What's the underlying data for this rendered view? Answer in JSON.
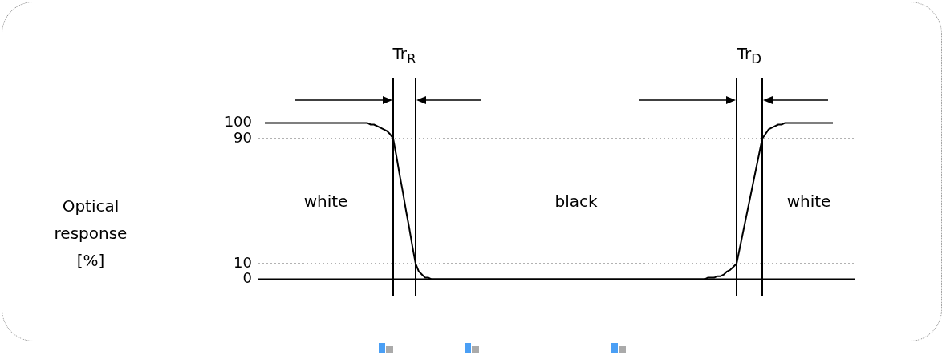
{
  "chart_data": {
    "type": "line",
    "categories": [
      null,
      null,
      null,
      null,
      null,
      null,
      null,
      null,
      null,
      null,
      null,
      null,
      null,
      null,
      null,
      null,
      null,
      null,
      null,
      null,
      null,
      null,
      null,
      null,
      null,
      null,
      null,
      null,
      null,
      null,
      null,
      null,
      null,
      null,
      null,
      null,
      null,
      null,
      null,
      null,
      null,
      null,
      null,
      null,
      null,
      null,
      null,
      null,
      null,
      null,
      null,
      null,
      null,
      null,
      null,
      null,
      null,
      null,
      null,
      null,
      null,
      null,
      null,
      null,
      null,
      null,
      null,
      null,
      null,
      null,
      null,
      null,
      null,
      null,
      null,
      null,
      null,
      null,
      null,
      null,
      null,
      null,
      null,
      null,
      null,
      null,
      null,
      null,
      null,
      null,
      null,
      null,
      null,
      null,
      null,
      null,
      null,
      null,
      null,
      null,
      null,
      null,
      null,
      null,
      null,
      null,
      null,
      null,
      null,
      null,
      null,
      null,
      null,
      null,
      null,
      null,
      null,
      null,
      null,
      null,
      null,
      null,
      null,
      null,
      null,
      null,
      null,
      null,
      null,
      null,
      null,
      null,
      null,
      null,
      null,
      null,
      null,
      null,
      null,
      null,
      null,
      null,
      null,
      null,
      null,
      null,
      null,
      null,
      null,
      null,
      null,
      null,
      null,
      null,
      null,
      null,
      null,
      null,
      null,
      null,
      null,
      null,
      null,
      null,
      null,
      null,
      null,
      null,
      null,
      null,
      null,
      null,
      null,
      null,
      null,
      null,
      null,
      null,
      null,
      null,
      null,
      null,
      null,
      null,
      null,
      null,
      null
    ],
    "series": [
      {
        "color": "#000000",
        "values": [
          null,
          null,
          100,
          100,
          100,
          100,
          100,
          100,
          100,
          100,
          100,
          100,
          100,
          100,
          100,
          100,
          100,
          100,
          100,
          100,
          100,
          100,
          100,
          100,
          100,
          100,
          100,
          100,
          100,
          100,
          100,
          100,
          100,
          100,
          100,
          99,
          99,
          98,
          97,
          96,
          95,
          93,
          90,
          79,
          67,
          56,
          44,
          33,
          21,
          10,
          5,
          3,
          1,
          1,
          0,
          0,
          0,
          0,
          0,
          0,
          0,
          0,
          0,
          0,
          0,
          0,
          0,
          0,
          0,
          0,
          0,
          0,
          0,
          0,
          0,
          0,
          0,
          0,
          0,
          0,
          0,
          0,
          0,
          0,
          0,
          0,
          0,
          0,
          0,
          0,
          0,
          0,
          0,
          0,
          0,
          0,
          0,
          0,
          0,
          0,
          0,
          0,
          0,
          0,
          0,
          0,
          0,
          0,
          0,
          0,
          0,
          0,
          0,
          0,
          0,
          0,
          0,
          0,
          0,
          0,
          0,
          0,
          0,
          0,
          0,
          0,
          0,
          0,
          0,
          0,
          0,
          0,
          0,
          0,
          0,
          0,
          0,
          0,
          0,
          0,
          1,
          1,
          1,
          2,
          2,
          3,
          5,
          6,
          8,
          10,
          20,
          30,
          40,
          50,
          60,
          70,
          80,
          90,
          93,
          96,
          97,
          98,
          99,
          99,
          100,
          100,
          100,
          100,
          100,
          100,
          100,
          100,
          100,
          100,
          100,
          100,
          100,
          100,
          100,
          100,
          null,
          null,
          null,
          null,
          null,
          null,
          null
        ]
      }
    ],
    "ylim": [
      -11,
      129
    ],
    "yticks": [
      0,
      10,
      90,
      100
    ],
    "tick_labels": "y",
    "grid": false,
    "legend": false,
    "marker": "none",
    "line_style": "solid",
    "ref_lines": [
      {
        "axis": "y",
        "value": 90,
        "line_style": "dotted",
        "color": "#555555"
      },
      {
        "axis": "y",
        "value": 10,
        "line_style": "dotted",
        "color": "#555555"
      },
      {
        "axis": "y",
        "value": 0,
        "line_style": "solid",
        "color": "#000000"
      }
    ],
    "annotations": [
      "Tr$_{R}$",
      "Tr$_{D}$",
      "white",
      "black",
      "white",
      "Optical response [%]"
    ]
  }
}
